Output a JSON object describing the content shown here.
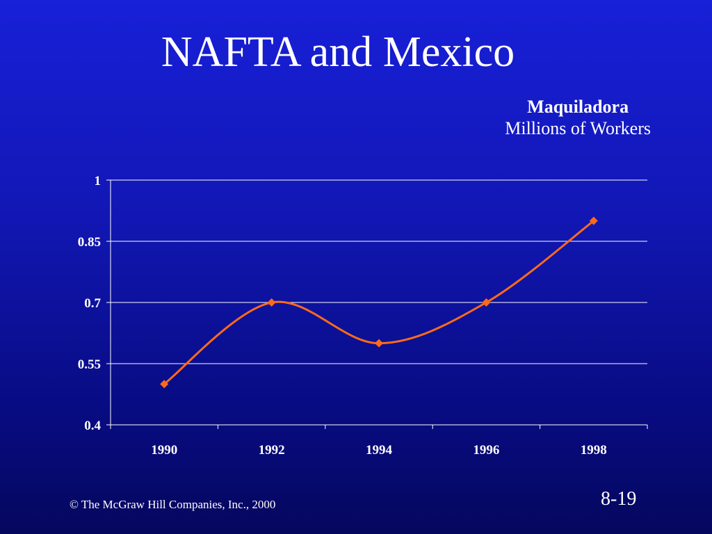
{
  "slide": {
    "title": "NAFTA and Mexico",
    "footer": "© The McGraw Hill Companies, Inc., 2000",
    "page_number": "8-19"
  },
  "colors": {
    "background_top": "#1820d8",
    "background_bottom": "#05075e",
    "text": "#ffffff",
    "series_line": "#ff6a1a"
  },
  "chart_data": {
    "type": "line",
    "title": "Maquiladora",
    "subtitle": "Millions of Workers",
    "xlabel": "",
    "ylabel": "",
    "categories": [
      "1990",
      "1992",
      "1994",
      "1996",
      "1998"
    ],
    "series": [
      {
        "values": [
          0.5,
          0.7,
          0.6,
          0.7,
          0.9
        ],
        "color": "#ff6a1a",
        "marker": "diamond",
        "smooth": true
      }
    ],
    "ylim": [
      0.4,
      1
    ],
    "yticks": [
      0.4,
      0.55,
      0.7,
      0.85,
      1
    ],
    "ytick_labels": [
      "0.4",
      "0.55",
      "0.7",
      "0.85",
      "1"
    ],
    "grid": true,
    "legend": "none"
  }
}
